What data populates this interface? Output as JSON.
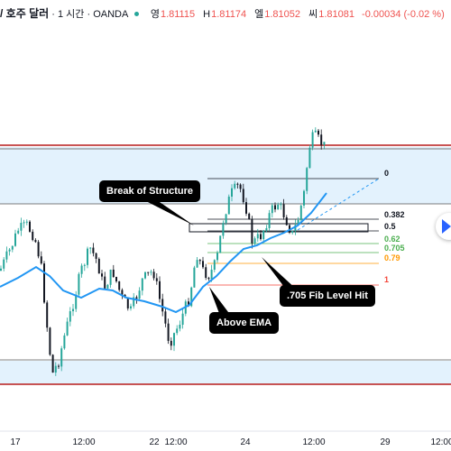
{
  "header": {
    "symbol": "/ 호주 달러",
    "sep1": "·",
    "interval": "1 시간",
    "sep2": "·",
    "broker": "OANDA",
    "open_label": "영",
    "open_value": "1.81115",
    "high_label": "H",
    "high_value": "1.81174",
    "low_label": "엘",
    "low_value": "1.81052",
    "close_label": "씨",
    "close_value": "1.81081",
    "change": "-0.00034 (-0.02 %)"
  },
  "annotations": {
    "break_of_structure": "Break of Structure",
    "above_ema": "Above EMA",
    "fib_hit": ".705 Fib Level Hit"
  },
  "fib_levels": [
    {
      "label": "0",
      "color": "#131722"
    },
    {
      "label": "0.382",
      "color": "#131722"
    },
    {
      "label": "0.5",
      "color": "#131722"
    },
    {
      "label": "0.62",
      "color": "#4caf50"
    },
    {
      "label": "0.705",
      "color": "#4caf50"
    },
    {
      "label": "0.79",
      "color": "#ff9800"
    },
    {
      "label": "1",
      "color": "#f44336"
    }
  ],
  "x_axis": {
    "labels": [
      "17",
      "12:00",
      "22",
      "12:00",
      "24",
      "12:00",
      "29",
      "12:00"
    ]
  },
  "colors": {
    "up": "#26a69a",
    "down": "#131722",
    "ema": "#2196f3",
    "zone_fill": "#e3f2fd",
    "resistance": "#b71c1c"
  },
  "icons": {
    "nav": "scroll-right-icon"
  }
}
